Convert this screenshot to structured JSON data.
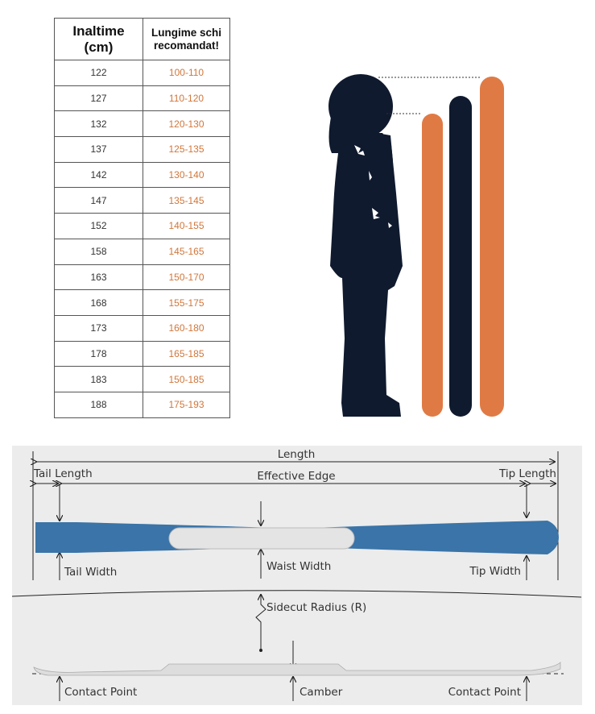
{
  "table": {
    "headers": [
      "Inaltime (cm)",
      "Lungime schi recomandat!"
    ],
    "header_lines": [
      [
        "Inaltime",
        "(cm)"
      ],
      [
        "Lungime schi",
        "recomandat!"
      ]
    ],
    "rows": [
      [
        "122",
        "100-110"
      ],
      [
        "127",
        "110-120"
      ],
      [
        "132",
        "120-130"
      ],
      [
        "137",
        "125-135"
      ],
      [
        "142",
        "130-140"
      ],
      [
        "147",
        "135-145"
      ],
      [
        "152",
        "140-155"
      ],
      [
        "158",
        "145-165"
      ],
      [
        "163",
        "150-170"
      ],
      [
        "168",
        "155-175"
      ],
      [
        "173",
        "160-180"
      ],
      [
        "178",
        "165-185"
      ],
      [
        "183",
        "150-185"
      ],
      [
        "188",
        "175-193"
      ]
    ]
  },
  "colors": {
    "range_text": "#d0763a",
    "ski_orange": "#e07a45",
    "ski_navy": "#0f1a2e",
    "silhouette": "#0f1a2e",
    "ski_blue": "#3a74a8",
    "diagram_bg": "#ececec"
  },
  "diagram": {
    "length": "Length",
    "tail_length": "Tail Length",
    "effective_edge": "Effective Edge",
    "tip_length": "Tip Length",
    "tail_width": "Tail Width",
    "waist_width": "Waist Width",
    "tip_width": "Tip Width",
    "sidecut_radius": "Sidecut Radius (R)",
    "contact_point_left": "Contact Point",
    "camber": "Camber",
    "contact_point_right": "Contact Point"
  }
}
